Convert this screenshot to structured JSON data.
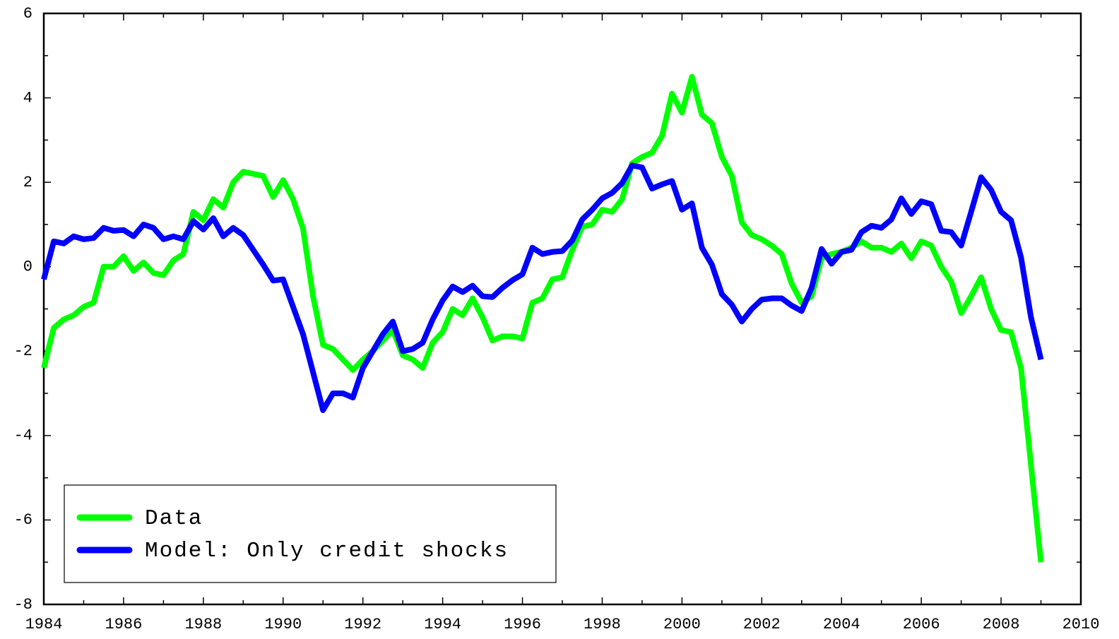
{
  "chart_data": {
    "type": "line",
    "x": [
      1984,
      1984.25,
      1984.5,
      1984.75,
      1985,
      1985.25,
      1985.5,
      1985.75,
      1986,
      1986.25,
      1986.5,
      1986.75,
      1987,
      1987.25,
      1987.5,
      1987.75,
      1988,
      1988.25,
      1988.5,
      1988.75,
      1989,
      1989.25,
      1989.5,
      1989.75,
      1990,
      1990.25,
      1990.5,
      1990.75,
      1991,
      1991.25,
      1991.5,
      1991.75,
      1992,
      1992.25,
      1992.5,
      1992.75,
      1993,
      1993.25,
      1993.5,
      1993.75,
      1994,
      1994.25,
      1994.5,
      1994.75,
      1995,
      1995.25,
      1995.5,
      1995.75,
      1996,
      1996.25,
      1996.5,
      1996.75,
      1997,
      1997.25,
      1997.5,
      1997.75,
      1998,
      1998.25,
      1998.5,
      1998.75,
      1999,
      1999.25,
      1999.5,
      1999.75,
      2000,
      2000.25,
      2000.5,
      2000.75,
      2001,
      2001.25,
      2001.5,
      2001.75,
      2002,
      2002.25,
      2002.5,
      2002.75,
      2003,
      2003.25,
      2003.5,
      2003.75,
      2004,
      2004.25,
      2004.5,
      2004.75,
      2005,
      2005.25,
      2005.5,
      2005.75,
      2006,
      2006.25,
      2006.5,
      2006.75,
      2007,
      2007.25,
      2007.5,
      2007.75,
      2008,
      2008.25,
      2008.5,
      2008.75,
      2009
    ],
    "series": [
      {
        "name": "Data",
        "color": "#00ff00",
        "values": [
          -2.4,
          -1.45,
          -1.25,
          -1.15,
          -0.95,
          -0.85,
          0,
          0,
          0.25,
          -0.1,
          0.1,
          -0.15,
          -0.2,
          0.15,
          0.3,
          1.3,
          1.1,
          1.6,
          1.4,
          2.0,
          2.25,
          2.2,
          2.15,
          1.65,
          2.05,
          1.6,
          0.9,
          -0.7,
          -1.85,
          -1.95,
          -2.2,
          -2.45,
          -2.2,
          -2.0,
          -1.75,
          -1.5,
          -2.1,
          -2.2,
          -2.4,
          -1.8,
          -1.55,
          -1.0,
          -1.15,
          -0.75,
          -1.2,
          -1.75,
          -1.65,
          -1.65,
          -1.7,
          -0.85,
          -0.75,
          -0.3,
          -0.25,
          0.4,
          0.95,
          1.0,
          1.35,
          1.3,
          1.6,
          2.45,
          2.6,
          2.7,
          3.1,
          4.1,
          3.65,
          4.5,
          3.6,
          3.4,
          2.6,
          2.15,
          1.05,
          0.75,
          0.65,
          0.5,
          0.3,
          -0.4,
          -0.85,
          -0.7,
          0.2,
          0.3,
          0.35,
          0.45,
          0.6,
          0.45,
          0.45,
          0.35,
          0.55,
          0.2,
          0.6,
          0.5,
          0.0,
          -0.35,
          -1.1,
          -0.7,
          -0.25,
          -1.0,
          -1.5,
          -1.55,
          -2.4,
          -4.7,
          -7.0
        ]
      },
      {
        "name": "Model: Only credit shocks",
        "color": "#0000ff",
        "values": [
          -0.3,
          0.6,
          0.55,
          0.72,
          0.65,
          0.68,
          0.92,
          0.85,
          0.87,
          0.72,
          1.0,
          0.92,
          0.65,
          0.72,
          0.65,
          1.08,
          0.88,
          1.15,
          0.72,
          0.92,
          0.75,
          0.4,
          0.05,
          -0.33,
          -0.3,
          -0.95,
          -1.6,
          -2.5,
          -3.4,
          -3.0,
          -3.0,
          -3.1,
          -2.4,
          -2.0,
          -1.6,
          -1.3,
          -2.0,
          -1.95,
          -1.8,
          -1.25,
          -0.8,
          -0.47,
          -0.6,
          -0.45,
          -0.7,
          -0.72,
          -0.5,
          -0.32,
          -0.18,
          0.45,
          0.3,
          0.35,
          0.37,
          0.62,
          1.12,
          1.35,
          1.62,
          1.75,
          1.98,
          2.4,
          2.35,
          1.85,
          1.95,
          2.03,
          1.35,
          1.5,
          0.45,
          0.05,
          -0.65,
          -0.9,
          -1.3,
          -1.0,
          -0.78,
          -0.75,
          -0.75,
          -0.92,
          -1.05,
          -0.5,
          0.42,
          0.07,
          0.35,
          0.4,
          0.82,
          0.97,
          0.92,
          1.12,
          1.62,
          1.25,
          1.55,
          1.48,
          0.85,
          0.82,
          0.5,
          1.3,
          2.12,
          1.82,
          1.3,
          1.1,
          0.22,
          -1.2,
          -2.2
        ]
      }
    ],
    "xlim": [
      1984,
      2010
    ],
    "xticks": [
      1984,
      1986,
      1988,
      1990,
      1992,
      1994,
      1996,
      1998,
      2000,
      2002,
      2004,
      2006,
      2008,
      2010
    ],
    "xminorticks": [
      1985,
      1987,
      1989,
      1991,
      1993,
      1995,
      1997,
      1999,
      2001,
      2003,
      2005,
      2007,
      2009
    ],
    "ylim": [
      -8,
      6
    ],
    "yticks": [
      -8,
      -6,
      -4,
      -2,
      0,
      2,
      4,
      6
    ],
    "yminorticks": [
      -7,
      -5,
      -3,
      -1,
      1,
      3,
      5
    ],
    "legend": "lower left"
  }
}
